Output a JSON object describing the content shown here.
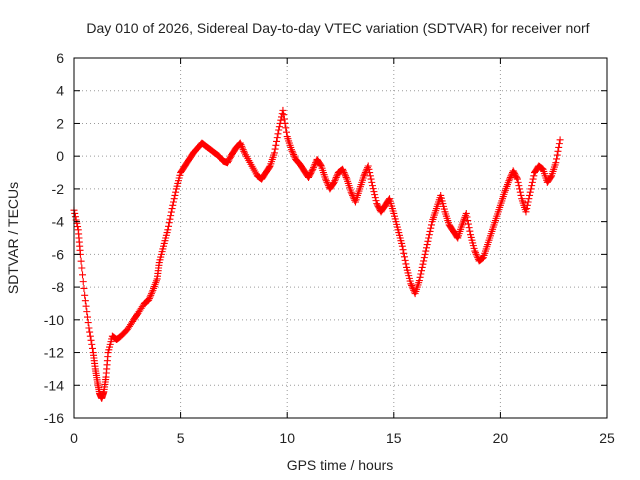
{
  "chart_data": {
    "type": "scatter",
    "title": "Day 010 of 2026, Sidereal Day-to-day VTEC variation (SDTVAR) for receiver norf",
    "xlabel": "GPS time / hours",
    "ylabel": "SDTVAR / TECUs",
    "xlim": [
      0,
      25
    ],
    "ylim": [
      -16,
      6
    ],
    "xticks": [
      0,
      5,
      10,
      15,
      20,
      25
    ],
    "yticks": [
      -16,
      -14,
      -12,
      -10,
      -8,
      -6,
      -4,
      -2,
      0,
      2,
      4,
      6
    ],
    "grid": true,
    "marker": "+",
    "color": "#ff0000",
    "series": [
      {
        "name": "SDTVAR",
        "x": [
          0.0,
          0.2,
          0.3,
          0.5,
          0.7,
          0.9,
          1.0,
          1.1,
          1.2,
          1.3,
          1.4,
          1.5,
          1.6,
          1.8,
          2.0,
          2.2,
          2.5,
          2.8,
          3.0,
          3.3,
          3.5,
          3.7,
          3.9,
          4.0,
          4.2,
          4.4,
          4.6,
          4.8,
          5.0,
          5.2,
          5.4,
          5.6,
          5.8,
          6.0,
          6.2,
          6.4,
          6.6,
          6.8,
          7.0,
          7.2,
          7.4,
          7.6,
          7.8,
          8.0,
          8.3,
          8.6,
          8.8,
          9.0,
          9.2,
          9.4,
          9.6,
          9.8,
          10.0,
          10.2,
          10.4,
          10.6,
          10.8,
          11.0,
          11.2,
          11.4,
          11.6,
          11.8,
          12.0,
          12.2,
          12.4,
          12.6,
          12.8,
          13.0,
          13.2,
          13.4,
          13.6,
          13.8,
          14.0,
          14.2,
          14.4,
          14.6,
          14.8,
          15.0,
          15.2,
          15.4,
          15.6,
          15.8,
          16.0,
          16.2,
          16.4,
          16.6,
          16.8,
          17.0,
          17.2,
          17.4,
          17.6,
          17.8,
          18.0,
          18.2,
          18.4,
          18.6,
          18.8,
          19.0,
          19.2,
          19.4,
          19.6,
          19.8,
          20.0,
          20.2,
          20.4,
          20.6,
          20.8,
          21.0,
          21.2,
          21.4,
          21.6,
          21.8,
          22.0,
          22.2,
          22.4,
          22.6,
          22.8
        ],
        "y": [
          -3.3,
          -4.5,
          -6.0,
          -8.5,
          -10.5,
          -12.0,
          -13.0,
          -13.8,
          -14.5,
          -14.8,
          -14.4,
          -13.5,
          -12.0,
          -11.0,
          -11.2,
          -11.0,
          -10.6,
          -10.0,
          -9.6,
          -9.0,
          -8.8,
          -8.2,
          -7.5,
          -6.5,
          -5.5,
          -4.5,
          -3.2,
          -2.0,
          -1.0,
          -0.6,
          -0.2,
          0.2,
          0.5,
          0.8,
          0.6,
          0.4,
          0.2,
          0.0,
          -0.3,
          -0.4,
          0.1,
          0.5,
          0.8,
          0.2,
          -0.5,
          -1.2,
          -1.4,
          -1.0,
          -0.6,
          0.2,
          1.6,
          2.8,
          1.2,
          0.4,
          -0.2,
          -0.5,
          -0.9,
          -1.3,
          -0.8,
          -0.2,
          -0.6,
          -1.4,
          -2.0,
          -1.6,
          -1.0,
          -0.8,
          -1.4,
          -2.2,
          -2.8,
          -2.0,
          -1.2,
          -0.6,
          -1.8,
          -2.9,
          -3.4,
          -3.0,
          -2.6,
          -3.5,
          -4.5,
          -5.5,
          -6.8,
          -7.8,
          -8.4,
          -7.6,
          -6.4,
          -5.2,
          -4.0,
          -3.2,
          -2.4,
          -3.4,
          -4.2,
          -4.6,
          -5.0,
          -4.2,
          -3.5,
          -4.8,
          -5.8,
          -6.4,
          -6.2,
          -5.4,
          -4.6,
          -3.8,
          -3.0,
          -2.2,
          -1.5,
          -0.9,
          -1.4,
          -2.6,
          -3.4,
          -2.2,
          -1.0,
          -0.6,
          -0.8,
          -1.6,
          -1.2,
          -0.4,
          1.0
        ]
      }
    ]
  }
}
